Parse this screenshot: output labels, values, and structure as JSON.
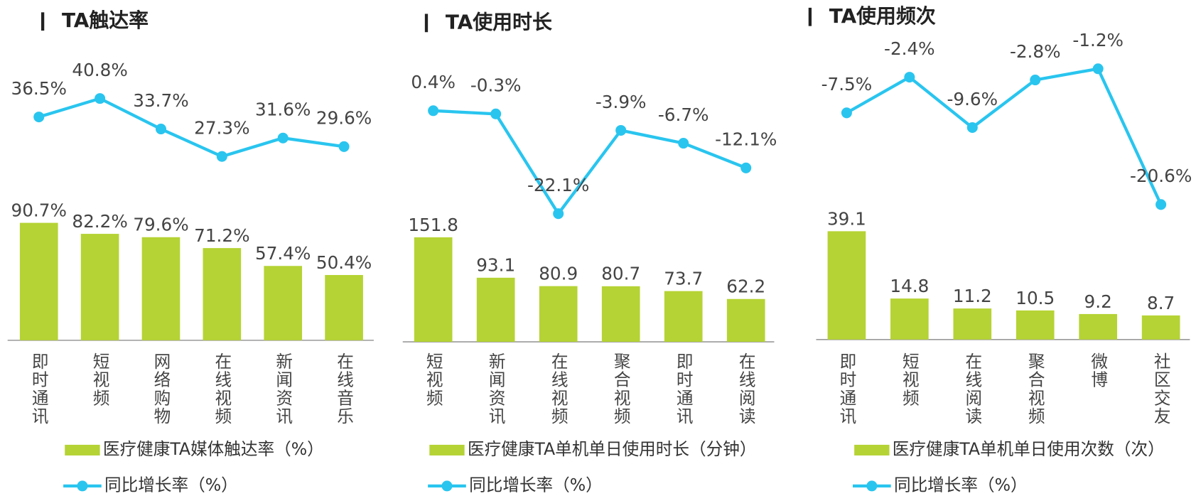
{
  "chart_data": [
    {
      "type": "bar-line",
      "title": "TA触达率",
      "categories": [
        "即时通讯",
        "短视频",
        "网络购物",
        "在线视频",
        "新闻资讯",
        "在线音乐"
      ],
      "series": [
        {
          "name": "医疗健康TA媒体触达率（%）",
          "type": "bar",
          "color": "#b5d334",
          "values": [
            90.7,
            82.2,
            79.6,
            71.2,
            57.4,
            50.4
          ],
          "value_labels": [
            "90.7%",
            "82.2%",
            "79.6%",
            "71.2%",
            "57.4%",
            "50.4%"
          ]
        },
        {
          "name": "同比增长率（%）",
          "type": "line",
          "color": "#29c5ef",
          "values": [
            36.5,
            40.8,
            33.7,
            27.3,
            31.6,
            29.6
          ],
          "value_labels": [
            "36.5%",
            "40.8%",
            "33.7%",
            "27.3%",
            "31.6%",
            "29.6%"
          ]
        }
      ]
    },
    {
      "type": "bar-line",
      "title": "TA使用时长",
      "categories": [
        "短视频",
        "新闻资讯",
        "在线视频",
        "聚合视频",
        "即时通讯",
        "在线阅读"
      ],
      "series": [
        {
          "name": "医疗健康TA单机单日使用时长（分钟）",
          "type": "bar",
          "color": "#b5d334",
          "values": [
            151.8,
            93.1,
            80.9,
            80.7,
            73.7,
            62.2
          ]
        },
        {
          "name": "同比增长率（%）",
          "type": "line",
          "color": "#29c5ef",
          "values": [
            0.4,
            -0.3,
            -22.1,
            -3.9,
            -6.7,
            -12.1
          ],
          "value_labels": [
            "0.4%",
            "-0.3%",
            "-22.1%",
            "-3.9%",
            "-6.7%",
            "-12.1%"
          ]
        }
      ]
    },
    {
      "type": "bar-line",
      "title": "TA使用频次",
      "categories": [
        "即时通讯",
        "短视频",
        "在线阅读",
        "聚合视频",
        "微博",
        "社区交友"
      ],
      "series": [
        {
          "name": "医疗健康TA单机单日使用次数（次）",
          "type": "bar",
          "color": "#b5d334",
          "values": [
            39.1,
            14.8,
            11.2,
            10.5,
            9.2,
            8.7
          ]
        },
        {
          "name": "同比增长率（%）",
          "type": "line",
          "color": "#29c5ef",
          "values": [
            -7.5,
            -2.4,
            -9.6,
            -2.8,
            -1.2,
            -20.6
          ],
          "value_labels": [
            "-7.5%",
            "-2.4%",
            "-9.6%",
            "-2.8%",
            "-1.2%",
            "-20.6%"
          ]
        }
      ]
    }
  ]
}
